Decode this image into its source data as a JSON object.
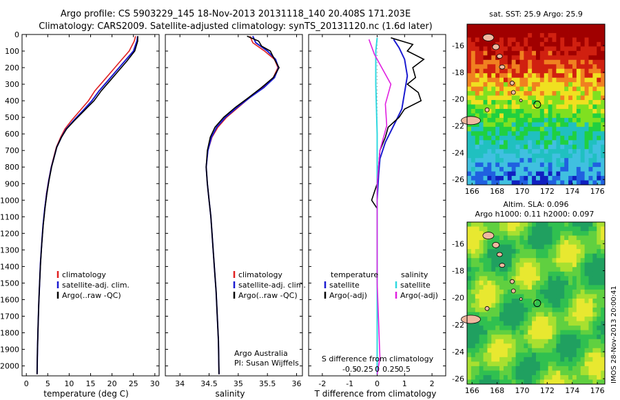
{
  "header": {
    "line1": "Argo profile: CS 5903229_145 18-Nov-2013 20131118_140 20.408S 171.203E",
    "line2": "Climatology: CARS2009. Satellite-adjusted climatology: synTS_20131120.nc (1.6d later)"
  },
  "colors": {
    "climatology": "#e02020",
    "satellite": "#1a1ad0",
    "argo": "#000000",
    "cyan": "#30d8e0",
    "magenta": "#e020e0"
  },
  "chart_data": [
    {
      "type": "line",
      "id": "temperature",
      "xlabel": "temperature (deg C)",
      "xlim": [
        -1,
        31
      ],
      "ylim": [
        0,
        2060
      ],
      "y_inverted": true,
      "yticks": [
        0,
        100,
        200,
        300,
        400,
        500,
        600,
        700,
        800,
        900,
        1000,
        1100,
        1200,
        1300,
        1400,
        1500,
        1600,
        1700,
        1800,
        1900,
        2000
      ],
      "xticks": [
        0,
        5,
        10,
        15,
        20,
        25,
        30
      ],
      "legend": [
        "climatology",
        "satellite-adj. clim.",
        "Argo(..raw -QC)"
      ],
      "series": [
        {
          "name": "climatology",
          "color": "#e02020",
          "points": [
            [
              25.5,
              10
            ],
            [
              25.2,
              40
            ],
            [
              24,
              100
            ],
            [
              22,
              160
            ],
            [
              20,
              220
            ],
            [
              18,
              280
            ],
            [
              16,
              340
            ],
            [
              14.5,
              400
            ],
            [
              12.5,
              460
            ],
            [
              10.5,
              520
            ],
            [
              9,
              570
            ],
            [
              8,
              620
            ],
            [
              7,
              680
            ],
            [
              6.4,
              740
            ],
            [
              5.8,
              800
            ],
            [
              5.2,
              880
            ],
            [
              4.7,
              960
            ],
            [
              4.3,
              1050
            ],
            [
              3.9,
              1150
            ],
            [
              3.6,
              1260
            ],
            [
              3.3,
              1380
            ],
            [
              3.1,
              1500
            ],
            [
              2.9,
              1620
            ],
            [
              2.75,
              1760
            ],
            [
              2.6,
              1900
            ],
            [
              2.5,
              2050
            ]
          ]
        },
        {
          "name": "satellite-adj. clim.",
          "color": "#1a1ad0",
          "points": [
            [
              26,
              10
            ],
            [
              25.8,
              40
            ],
            [
              25,
              100
            ],
            [
              23,
              160
            ],
            [
              21,
              220
            ],
            [
              19,
              280
            ],
            [
              17,
              340
            ],
            [
              15.3,
              400
            ],
            [
              13.2,
              460
            ],
            [
              11,
              520
            ],
            [
              9.3,
              570
            ],
            [
              8.2,
              620
            ],
            [
              7.1,
              680
            ],
            [
              6.5,
              740
            ],
            [
              5.85,
              800
            ],
            [
              5.25,
              880
            ],
            [
              4.75,
              960
            ],
            [
              4.3,
              1050
            ],
            [
              3.9,
              1150
            ],
            [
              3.6,
              1260
            ],
            [
              3.3,
              1380
            ],
            [
              3.1,
              1500
            ],
            [
              2.9,
              1620
            ],
            [
              2.75,
              1760
            ],
            [
              2.6,
              1900
            ],
            [
              2.5,
              2050
            ]
          ]
        },
        {
          "name": "Argo(..raw -QC)",
          "color": "#000000",
          "points": [
            [
              26,
              10
            ],
            [
              26,
              40
            ],
            [
              25.3,
              100
            ],
            [
              23.5,
              160
            ],
            [
              21.5,
              220
            ],
            [
              19.5,
              280
            ],
            [
              17.5,
              340
            ],
            [
              15.8,
              400
            ],
            [
              13.5,
              460
            ],
            [
              11.2,
              520
            ],
            [
              9.4,
              570
            ],
            [
              8.2,
              620
            ],
            [
              7.1,
              680
            ],
            [
              6.5,
              740
            ],
            [
              5.9,
              800
            ],
            [
              5.3,
              880
            ],
            [
              4.8,
              960
            ],
            [
              4.35,
              1050
            ],
            [
              3.95,
              1150
            ],
            [
              3.62,
              1260
            ],
            [
              3.32,
              1380
            ],
            [
              3.1,
              1500
            ],
            [
              2.9,
              1620
            ],
            [
              2.75,
              1760
            ],
            [
              2.6,
              1900
            ],
            [
              2.5,
              2050
            ]
          ]
        }
      ]
    },
    {
      "type": "line",
      "id": "salinity",
      "xlabel": "salinity",
      "xlim": [
        33.75,
        36.1
      ],
      "ylim": [
        0,
        2060
      ],
      "y_inverted": true,
      "xticks": [
        34,
        34.5,
        35,
        35.5,
        36
      ],
      "legend": [
        "climatology",
        "satellite-adj. clim.",
        "Argo(..raw -QC)"
      ],
      "annotation": [
        "Argo Australia",
        "PI: Susan Wijffels"
      ],
      "series": [
        {
          "name": "climatology",
          "color": "#e02020",
          "points": [
            [
              35.2,
              10
            ],
            [
              35.25,
              50
            ],
            [
              35.45,
              100
            ],
            [
              35.62,
              150
            ],
            [
              35.68,
              200
            ],
            [
              35.6,
              260
            ],
            [
              35.42,
              320
            ],
            [
              35.2,
              380
            ],
            [
              35.0,
              440
            ],
            [
              34.8,
              500
            ],
            [
              34.65,
              560
            ],
            [
              34.55,
              620
            ],
            [
              34.48,
              700
            ],
            [
              34.45,
              800
            ],
            [
              34.47,
              900
            ],
            [
              34.5,
              1000
            ],
            [
              34.53,
              1100
            ],
            [
              34.56,
              1250
            ],
            [
              34.59,
              1400
            ],
            [
              34.62,
              1550
            ],
            [
              34.64,
              1700
            ],
            [
              34.66,
              1850
            ],
            [
              34.67,
              2050
            ]
          ]
        },
        {
          "name": "satellite-adj. clim.",
          "color": "#1a1ad0",
          "points": [
            [
              35.25,
              10
            ],
            [
              35.3,
              50
            ],
            [
              35.5,
              100
            ],
            [
              35.64,
              150
            ],
            [
              35.69,
              200
            ],
            [
              35.62,
              260
            ],
            [
              35.44,
              320
            ],
            [
              35.2,
              380
            ],
            [
              34.98,
              440
            ],
            [
              34.78,
              500
            ],
            [
              34.63,
              560
            ],
            [
              34.54,
              620
            ],
            [
              34.48,
              700
            ],
            [
              34.45,
              800
            ],
            [
              34.47,
              900
            ],
            [
              34.5,
              1000
            ],
            [
              34.53,
              1100
            ],
            [
              34.56,
              1250
            ],
            [
              34.59,
              1400
            ],
            [
              34.62,
              1550
            ],
            [
              34.64,
              1700
            ],
            [
              34.66,
              1850
            ],
            [
              34.67,
              2050
            ]
          ]
        },
        {
          "name": "Argo(..raw -QC)",
          "color": "#000000",
          "points": [
            [
              35.15,
              10
            ],
            [
              35.35,
              40
            ],
            [
              35.4,
              70
            ],
            [
              35.55,
              100
            ],
            [
              35.62,
              150
            ],
            [
              35.7,
              200
            ],
            [
              35.6,
              260
            ],
            [
              35.4,
              320
            ],
            [
              35.18,
              380
            ],
            [
              34.95,
              440
            ],
            [
              34.75,
              500
            ],
            [
              34.6,
              560
            ],
            [
              34.52,
              620
            ],
            [
              34.47,
              700
            ],
            [
              34.45,
              800
            ],
            [
              34.47,
              900
            ],
            [
              34.5,
              1000
            ],
            [
              34.53,
              1100
            ],
            [
              34.56,
              1250
            ],
            [
              34.59,
              1400
            ],
            [
              34.62,
              1550
            ],
            [
              34.64,
              1700
            ],
            [
              34.66,
              1850
            ],
            [
              34.67,
              2050
            ]
          ]
        }
      ]
    },
    {
      "type": "line",
      "id": "difference",
      "xlabel": "T difference from climatology",
      "xlabel_top": "S difference from climatology",
      "xlim": [
        -2.5,
        2.5
      ],
      "ylim": [
        0,
        2060
      ],
      "y_inverted": true,
      "xticks": [
        -2,
        -1,
        0,
        1,
        2
      ],
      "xticks_top": [
        "-0.5",
        "-0.25",
        "0",
        "0.25",
        "0.5"
      ],
      "legend_left": {
        "title": "temperature",
        "items": [
          "satellite",
          "Argo(-adj)"
        ]
      },
      "legend_right": {
        "title": "salinity",
        "items": [
          "satellite",
          "Argo(-adj)"
        ]
      },
      "series": [
        {
          "name": "temperature satellite",
          "color": "#1a1ad0",
          "points": [
            [
              0.6,
              30
            ],
            [
              0.8,
              80
            ],
            [
              1,
              150
            ],
            [
              1.1,
              250
            ],
            [
              1.0,
              350
            ],
            [
              0.9,
              450
            ],
            [
              0.6,
              550
            ],
            [
              0.3,
              650
            ],
            [
              0.1,
              750
            ],
            [
              0.05,
              850
            ],
            [
              0,
              1000
            ],
            [
              0,
              2050
            ]
          ]
        },
        {
          "name": "temperature Argo(-adj)",
          "color": "#000000",
          "points": [
            [
              0.5,
              20
            ],
            [
              1.3,
              60
            ],
            [
              1.1,
              100
            ],
            [
              1.7,
              150
            ],
            [
              1.3,
              200
            ],
            [
              1.4,
              260
            ],
            [
              1.1,
              300
            ],
            [
              1.5,
              350
            ],
            [
              1.6,
              400
            ],
            [
              1,
              450
            ],
            [
              0.8,
              500
            ],
            [
              0.4,
              560
            ],
            [
              0.3,
              620
            ],
            [
              0.1,
              700
            ],
            [
              0.05,
              800
            ],
            [
              0,
              900
            ],
            [
              -0.2,
              1000
            ],
            [
              0,
              1050
            ],
            [
              0,
              2050
            ]
          ]
        },
        {
          "name": "salinity satellite",
          "color": "#30d8e0",
          "points": [
            [
              0,
              20
            ],
            [
              -0.05,
              100
            ],
            [
              -0.05,
              300
            ],
            [
              0,
              600
            ],
            [
              0,
              1000
            ],
            [
              0,
              2050
            ]
          ]
        },
        {
          "name": "salinity Argo(-adj)",
          "color": "#e020e0",
          "points": [
            [
              -0.3,
              30
            ],
            [
              -0.1,
              120
            ],
            [
              0.5,
              300
            ],
            [
              0.3,
              420
            ],
            [
              0.35,
              550
            ],
            [
              0.1,
              700
            ],
            [
              0,
              900
            ],
            [
              0,
              1500
            ],
            [
              0.1,
              1950
            ],
            [
              0,
              2050
            ]
          ]
        }
      ]
    }
  ],
  "maps": {
    "sst": {
      "title": "sat. SST: 25.9 Argo: 25.9",
      "xlim": [
        165.6,
        176.6
      ],
      "ylim": [
        -26.4,
        -14.4
      ],
      "xticks": [
        166,
        168,
        170,
        172,
        174,
        176
      ],
      "yticks": [
        -16,
        -18,
        -20,
        -22,
        -24,
        -26
      ],
      "argo_lon": 171.203,
      "argo_lat": -20.408
    },
    "sla": {
      "title1": "Altim. SLA: 0.096",
      "title2": "Argo h1000: 0.11 h2000: 0.097",
      "xlim": [
        165.6,
        176.6
      ],
      "ylim": [
        -26.4,
        -14.4
      ],
      "xticks": [
        166,
        168,
        170,
        172,
        174,
        176
      ],
      "yticks": [
        -16,
        -18,
        -20,
        -22,
        -24,
        -26
      ],
      "argo_lon": 171.203,
      "argo_lat": -20.408
    },
    "stamp": "IMOS 28-Nov-2013 20:00:41"
  }
}
